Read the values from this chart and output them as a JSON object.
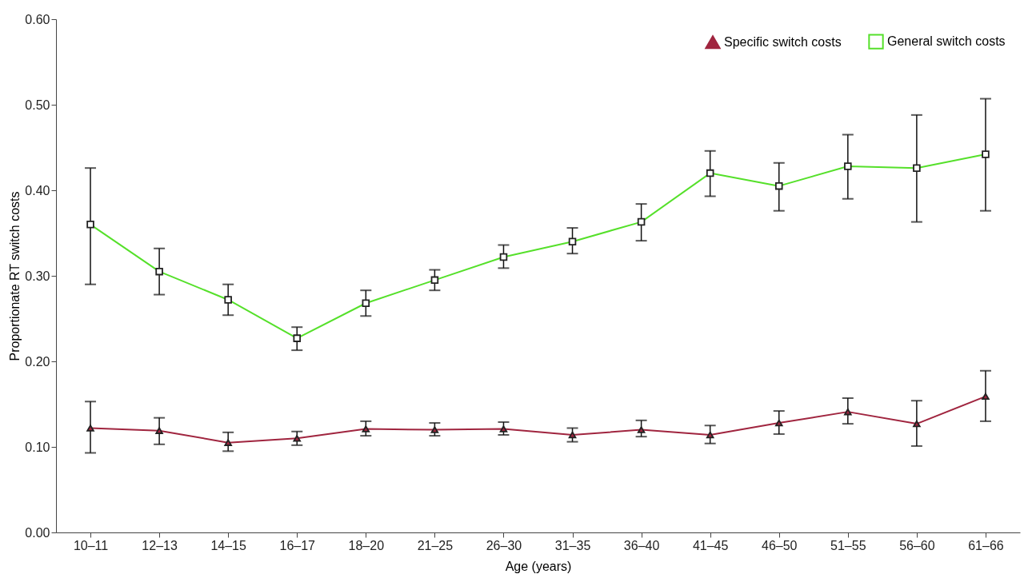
{
  "chart_data": {
    "type": "line",
    "xlabel": "Age  (years)",
    "ylabel": "Proportionate RT switch costs",
    "categories": [
      "10–11",
      "12–13",
      "14–15",
      "16–17",
      "18–20",
      "21–25",
      "26–30",
      "31–35",
      "36–40",
      "41–45",
      "46–50",
      "51–55",
      "56–60",
      "61–66"
    ],
    "ylim": [
      0,
      0.6
    ],
    "yticks": [
      {
        "value": 0,
        "label": "0.00"
      },
      {
        "value": 0.1,
        "label": "0.10"
      },
      {
        "value": 0.2,
        "label": "0.20"
      },
      {
        "value": 0.3,
        "label": "0.30"
      },
      {
        "value": 0.4,
        "label": "0.40"
      },
      {
        "value": 0.5,
        "label": "0.50"
      },
      {
        "value": 0.6,
        "label": "0.60"
      }
    ],
    "grid": false,
    "legend": "top right",
    "series": [
      {
        "name": "Specific switch costs",
        "color": "#a0253f",
        "marker": "triangle",
        "values": [
          0.122,
          0.119,
          0.105,
          0.11,
          0.121,
          0.12,
          0.121,
          0.114,
          0.12,
          0.114,
          0.128,
          0.141,
          0.127,
          0.159
        ],
        "errors": [
          [
            0.093,
            0.153
          ],
          [
            0.103,
            0.134
          ],
          [
            0.095,
            0.117
          ],
          [
            0.102,
            0.118
          ],
          [
            0.113,
            0.13
          ],
          [
            0.113,
            0.128
          ],
          [
            0.114,
            0.129
          ],
          [
            0.106,
            0.122
          ],
          [
            0.112,
            0.131
          ],
          [
            0.104,
            0.125
          ],
          [
            0.115,
            0.142
          ],
          [
            0.127,
            0.157
          ],
          [
            0.101,
            0.154
          ],
          [
            0.13,
            0.189
          ]
        ]
      },
      {
        "name": "General switch costs",
        "color": "#55e02a",
        "marker": "square",
        "values": [
          0.36,
          0.305,
          0.272,
          0.227,
          0.268,
          0.295,
          0.322,
          0.34,
          0.363,
          0.42,
          0.405,
          0.428,
          0.426,
          0.442
        ],
        "errors": [
          [
            0.29,
            0.426
          ],
          [
            0.278,
            0.332
          ],
          [
            0.254,
            0.29
          ],
          [
            0.213,
            0.24
          ],
          [
            0.253,
            0.283
          ],
          [
            0.283,
            0.307
          ],
          [
            0.309,
            0.336
          ],
          [
            0.326,
            0.356
          ],
          [
            0.341,
            0.384
          ],
          [
            0.393,
            0.446
          ],
          [
            0.376,
            0.432
          ],
          [
            0.39,
            0.465
          ],
          [
            0.363,
            0.488
          ],
          [
            0.376,
            0.507
          ]
        ]
      }
    ]
  }
}
